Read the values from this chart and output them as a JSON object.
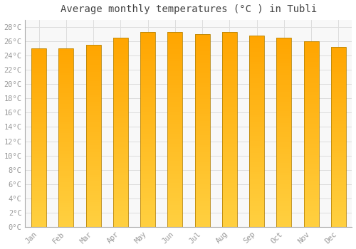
{
  "title": "Average monthly temperatures (°C ) in Tubli",
  "months": [
    "Jan",
    "Feb",
    "Mar",
    "Apr",
    "May",
    "Jun",
    "Jul",
    "Aug",
    "Sep",
    "Oct",
    "Nov",
    "Dec"
  ],
  "temperatures": [
    25.0,
    25.0,
    25.5,
    26.5,
    27.3,
    27.3,
    27.0,
    27.3,
    26.8,
    26.5,
    26.0,
    25.2
  ],
  "bar_color_top": "#FFA500",
  "bar_color_bottom": "#FFD040",
  "bar_edge_color": "#B8860B",
  "background_color": "#FFFFFF",
  "plot_bg_color": "#F8F8F8",
  "grid_color": "#DDDDDD",
  "text_color": "#999999",
  "ylim": [
    0,
    29
  ],
  "yticks": [
    0,
    2,
    4,
    6,
    8,
    10,
    12,
    14,
    16,
    18,
    20,
    22,
    24,
    26,
    28
  ],
  "ytick_labels": [
    "0°C",
    "2°C",
    "4°C",
    "6°C",
    "8°C",
    "10°C",
    "12°C",
    "14°C",
    "16°C",
    "18°C",
    "20°C",
    "22°C",
    "24°C",
    "26°C",
    "28°C"
  ],
  "title_fontsize": 10,
  "tick_fontsize": 7.5
}
